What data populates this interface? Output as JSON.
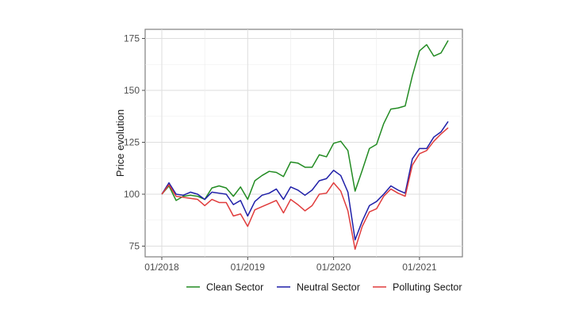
{
  "chart_data": {
    "type": "line",
    "title": "",
    "xlabel": "",
    "ylabel": "Price evolution",
    "x_ticks": [
      "01/2018",
      "01/2019",
      "01/2020",
      "01/2021"
    ],
    "y_ticks": [
      75,
      100,
      125,
      150,
      175
    ],
    "ylim": [
      70,
      178
    ],
    "grid": true,
    "legend_position": "bottom",
    "x": [
      "2018-01",
      "2018-02",
      "2018-03",
      "2018-04",
      "2018-05",
      "2018-06",
      "2018-07",
      "2018-08",
      "2018-09",
      "2018-10",
      "2018-11",
      "2018-12",
      "2019-01",
      "2019-02",
      "2019-03",
      "2019-04",
      "2019-05",
      "2019-06",
      "2019-07",
      "2019-08",
      "2019-09",
      "2019-10",
      "2019-11",
      "2019-12",
      "2020-01",
      "2020-02",
      "2020-03",
      "2020-04",
      "2020-05",
      "2020-06",
      "2020-07",
      "2020-08",
      "2020-09",
      "2020-10",
      "2020-11",
      "2020-12",
      "2021-01",
      "2021-02",
      "2021-03",
      "2021-04",
      "2021-05"
    ],
    "series": [
      {
        "name": "Clean Sector",
        "color": "#228b22",
        "values": [
          100,
          104,
          97,
          99,
          99.5,
          99,
          97.5,
          103,
          104,
          103,
          99,
          103.5,
          97.5,
          106.5,
          109,
          111,
          110.5,
          108.5,
          115.5,
          115,
          113,
          113,
          119,
          118,
          124.5,
          125.5,
          121,
          101.5,
          111.5,
          122,
          124,
          134,
          141,
          141.5,
          142.5,
          157,
          169,
          172,
          166.5,
          168,
          174
        ]
      },
      {
        "name": "Neutral Sector",
        "color": "#1f1fa8",
        "values": [
          100,
          105.5,
          100,
          99.5,
          101,
          100,
          97.5,
          101,
          100.5,
          100,
          95,
          97,
          89.5,
          96.5,
          99.5,
          100.5,
          102.5,
          97.5,
          103.5,
          102,
          99.5,
          102,
          106.5,
          107.5,
          111.5,
          109,
          101,
          78,
          87,
          94.5,
          96.5,
          100,
          104,
          102,
          100.5,
          117,
          122,
          122,
          127.5,
          130,
          135
        ]
      },
      {
        "name": "Polluting Sector",
        "color": "#e03c3c",
        "values": [
          100,
          104.5,
          99,
          98.5,
          98,
          97.5,
          94.5,
          97.5,
          96,
          96,
          89.5,
          90.5,
          84.5,
          92.5,
          94,
          95.5,
          97,
          91,
          97.5,
          95,
          92,
          94.5,
          100,
          100.5,
          105.5,
          101.5,
          92,
          73.5,
          84.5,
          91.5,
          93,
          99,
          102.5,
          100.5,
          99,
          114,
          119.5,
          121,
          125.5,
          129,
          132
        ]
      }
    ]
  }
}
